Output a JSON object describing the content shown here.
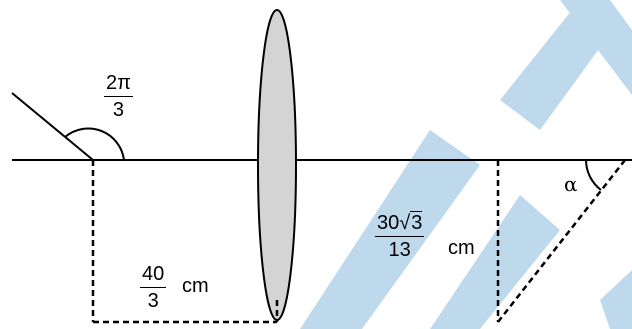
{
  "angle_label": {
    "numerator": "2π",
    "denominator": "3"
  },
  "horizontal_distance": {
    "numerator": "40",
    "denominator": "3",
    "unit": "cm"
  },
  "image_distance": {
    "numerator_coeff": "30",
    "numerator_radical": "√",
    "numerator_radicand": "3",
    "denominator": "13",
    "unit": "cm"
  },
  "alpha_label": "α",
  "colors": {
    "lens_fill": "#d4d4d4",
    "stroke": "#000000",
    "watermark": "#a9cce6"
  }
}
